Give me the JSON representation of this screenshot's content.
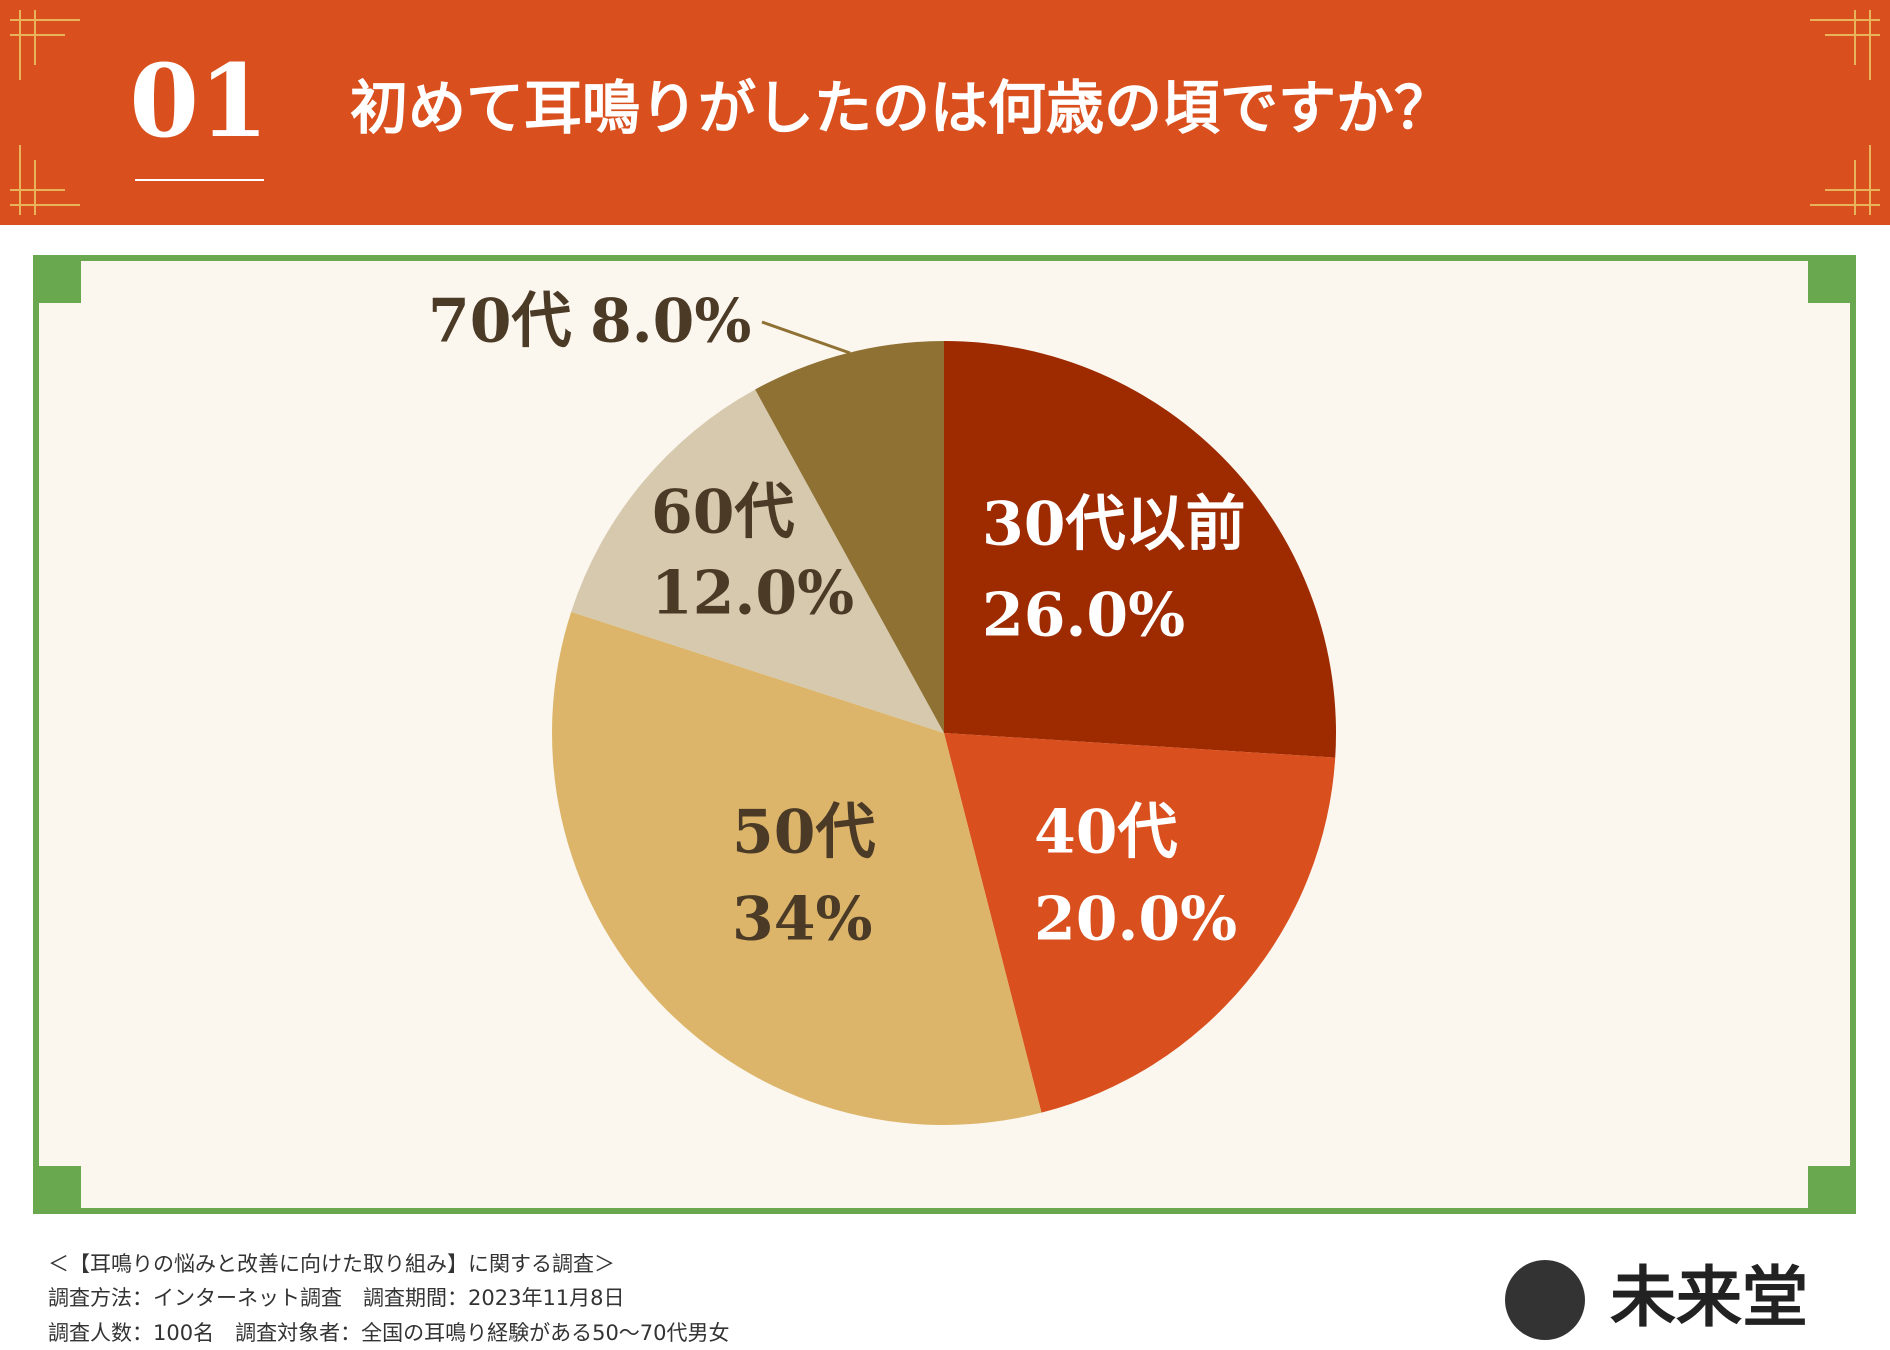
{
  "header": {
    "number": "01"
  },
  "chart_data": {
    "type": "pie",
    "title": "初めて耳鳴りがしたのは何歳の頃ですか？",
    "categories": [
      "30代以前",
      "40代",
      "50代",
      "60代",
      "70代"
    ],
    "values": [
      26,
      20,
      34,
      12,
      8
    ],
    "value_labels": [
      "26.0%",
      "20.0%",
      "34%",
      "12.0%",
      "8.0%"
    ],
    "colors": [
      "#9e2a00",
      "#d94f1e",
      "#dcb56a",
      "#d6c9ae",
      "#8f7134"
    ]
  },
  "footer": {
    "lines": [
      "＜【耳鳴りの悩みと改善に向けた取り組み】に関する調査＞",
      "調査方法：インターネット調査　調査期間：2023年11月8日",
      "調査人数：100名　調査対象者：全国の耳鳴り経験がある50～70代男女"
    ]
  },
  "logo": "未来堂"
}
